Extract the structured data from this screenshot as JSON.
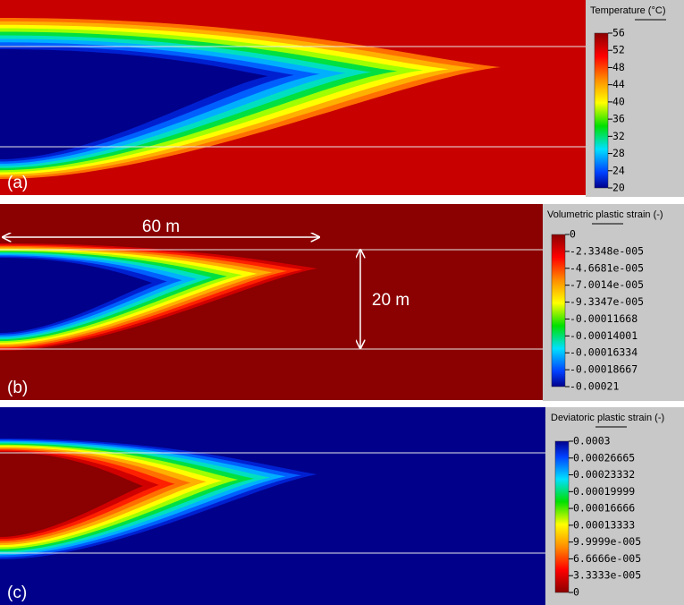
{
  "panels": [
    {
      "label": "(a)",
      "colorbar": {
        "title": "Temperature (°C)",
        "ticks": [
          "56",
          "52",
          "48",
          "44",
          "40",
          "36",
          "32",
          "28",
          "24",
          "20"
        ]
      }
    },
    {
      "label": "(b)",
      "colorbar": {
        "title": "Volumetric plastic strain (-)",
        "ticks": [
          "0",
          "-2.3348e-005",
          "-4.6681e-005",
          "-7.0014e-005",
          "-9.3347e-005",
          "-0.00011668",
          "-0.00014001",
          "-0.00016334",
          "-0.00018667",
          "-0.00021"
        ]
      }
    },
    {
      "label": "(c)",
      "colorbar": {
        "title": "Deviatoric plastic strain (-)",
        "ticks": [
          "0.0003",
          "0.00026665",
          "0.00023332",
          "0.00019999",
          "0.00016666",
          "0.00013333",
          "9.9999e-005",
          "6.6666e-005",
          "3.3333e-005",
          "0"
        ]
      }
    }
  ],
  "annotations": {
    "width": "60 m",
    "height": "20 m"
  }
}
